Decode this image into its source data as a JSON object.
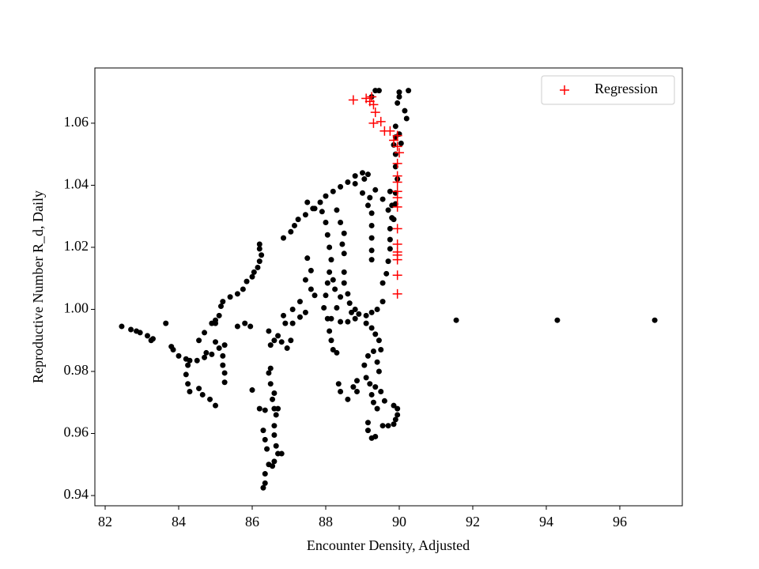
{
  "chart_data": {
    "type": "scatter",
    "xlabel": "Encounter Density, Adjusted",
    "ylabel": "Reproductive Number R_d, Daily",
    "xlim": [
      81.72,
      97.7
    ],
    "ylim": [
      0.9367,
      1.0778
    ],
    "xticks": [
      82,
      84,
      86,
      88,
      90,
      92,
      94,
      96
    ],
    "yticks": [
      0.94,
      0.96,
      0.98,
      {
        "value": 1,
        "label": "1.00"
      },
      1.02,
      1.04,
      1.06
    ],
    "legend": "upper right",
    "series": [
      {
        "color": "#000000",
        "marker": "circle",
        "x": [
          82.45,
          82.7,
          82.85,
          82.95,
          83.15,
          83.3,
          83.25,
          83.65,
          83.8,
          83.85,
          84.0,
          84.2,
          84.25,
          84.2,
          84.25,
          84.3,
          84.55,
          84.65,
          84.85,
          85.0,
          84.3,
          84.5,
          84.7,
          84.75,
          84.55,
          84.7,
          84.9,
          85.0,
          85.1,
          85.15,
          85.2,
          85.4,
          85.6,
          85.75,
          85.85,
          86.0,
          86.05,
          86.15,
          86.2,
          86.25,
          86.2,
          86.2,
          85.0,
          85.1,
          85.25,
          85.2,
          85.2,
          85.25,
          85.25,
          84.9,
          85.0,
          85.6,
          85.8,
          85.95,
          86.0,
          86.2,
          86.35,
          86.3,
          86.35,
          86.4,
          86.45,
          86.35,
          86.35,
          86.3,
          86.55,
          86.6,
          86.65,
          86.7,
          86.8,
          86.6,
          86.6,
          86.6,
          86.55,
          86.6,
          86.5,
          86.45,
          86.5,
          86.65,
          86.7,
          86.5,
          86.6,
          86.8,
          86.95,
          87.05,
          86.45,
          86.7,
          86.9,
          87.1,
          87.3,
          87.45,
          86.85,
          86.85,
          87.05,
          87.15,
          87.25,
          87.45,
          87.65,
          87.85,
          88.0,
          88.2,
          88.4,
          88.6,
          88.8,
          89.0,
          89.15,
          89.05,
          89.0,
          89.2,
          89.15,
          89.25,
          89.25,
          89.25,
          89.25,
          89.25,
          89.35,
          89.55,
          89.7,
          89.8,
          89.9,
          89.75,
          88.8,
          87.5,
          87.7,
          87.9,
          88.0,
          88.05,
          88.1,
          88.15,
          88.1,
          88.05,
          88.0,
          87.95,
          88.3,
          88.4,
          88.5,
          88.45,
          88.5,
          88.5,
          88.5,
          88.6,
          88.65,
          88.8,
          88.9,
          89.1,
          89.25,
          89.4,
          89.55,
          88.2,
          88.25,
          88.4,
          88.3,
          87.6,
          87.5,
          87.45,
          87.6,
          87.7,
          87.3,
          87.1,
          88.05,
          88.1,
          88.15,
          88.2,
          88.3,
          88.15,
          88.4,
          88.6,
          88.8,
          88.7,
          89.1,
          89.25,
          89.35,
          89.45,
          89.15,
          89.05,
          89.1,
          89.2,
          89.35,
          89.5,
          89.4,
          89.5,
          89.3,
          89.45,
          88.75,
          88.85,
          88.35,
          88.4,
          88.6,
          88.85,
          89.15,
          89.15,
          89.25,
          89.35,
          89.55,
          89.7,
          89.85,
          89.9,
          89.95,
          89.95,
          89.85,
          89.6,
          89.4,
          89.3,
          89.25,
          89.55,
          89.65,
          89.7,
          89.75,
          89.75,
          89.75,
          89.85,
          89.8,
          89.9,
          89.95,
          89.9,
          89.9,
          89.85,
          89.9,
          89.9,
          90.0,
          90.05,
          90.0,
          89.95,
          90.0,
          90.2,
          90.15,
          90.25,
          89.35,
          89.45,
          89.25,
          91.55,
          94.3,
          96.95
        ],
        "values": [
          0.9945,
          0.9935,
          0.993,
          0.9925,
          0.9915,
          0.9905,
          0.99,
          0.9955,
          0.988,
          0.987,
          0.985,
          0.984,
          0.982,
          0.979,
          0.976,
          0.9735,
          0.9745,
          0.9725,
          0.971,
          0.969,
          0.9835,
          0.9835,
          0.9845,
          0.986,
          0.99,
          0.9925,
          0.9955,
          0.9965,
          0.998,
          1.001,
          1.0025,
          1.004,
          1.005,
          1.0065,
          1.009,
          1.0105,
          1.012,
          1.0135,
          1.0155,
          1.0175,
          1.0195,
          1.021,
          0.9895,
          0.9875,
          0.9885,
          0.985,
          0.982,
          0.9795,
          0.9765,
          0.9855,
          0.9955,
          0.9945,
          0.9955,
          0.9945,
          0.974,
          0.968,
          0.9675,
          0.961,
          0.958,
          0.955,
          0.95,
          0.947,
          0.944,
          0.9425,
          0.9495,
          0.951,
          0.956,
          0.9535,
          0.9535,
          0.9595,
          0.9625,
          0.968,
          0.971,
          0.973,
          0.976,
          0.9795,
          0.981,
          0.966,
          0.968,
          0.9885,
          0.99,
          0.9895,
          0.9875,
          0.99,
          0.993,
          0.9915,
          0.9955,
          0.9955,
          0.9975,
          0.999,
          0.998,
          1.023,
          1.025,
          1.027,
          1.029,
          1.0305,
          1.0325,
          1.0345,
          1.0365,
          1.038,
          1.0395,
          1.041,
          1.043,
          1.044,
          1.0435,
          1.042,
          1.0375,
          1.036,
          1.0335,
          1.031,
          1.027,
          1.023,
          1.019,
          1.016,
          1.0385,
          1.0355,
          1.032,
          1.0295,
          1.034,
          1.038,
          1.0405,
          1.0345,
          1.0325,
          1.0315,
          1.028,
          1.024,
          1.02,
          1.016,
          1.012,
          1.0085,
          1.0045,
          1.0005,
          1.032,
          1.028,
          1.0245,
          1.021,
          1.018,
          1.012,
          1.0085,
          1.005,
          1.002,
          1.0,
          0.9985,
          0.998,
          0.999,
          1.0,
          1.0025,
          1.0095,
          1.0065,
          1.004,
          1.0005,
          1.0125,
          1.0165,
          1.0095,
          1.0065,
          1.0045,
          1.0025,
          1.0,
          0.997,
          0.993,
          0.99,
          0.987,
          0.986,
          0.997,
          0.996,
          0.996,
          0.997,
          0.999,
          0.9955,
          0.994,
          0.992,
          0.99,
          0.985,
          0.982,
          0.978,
          0.976,
          0.975,
          0.9735,
          0.983,
          0.987,
          0.9865,
          0.98,
          0.975,
          0.9735,
          0.976,
          0.9735,
          0.971,
          0.977,
          0.9635,
          0.961,
          0.9585,
          0.959,
          0.9625,
          0.9625,
          0.963,
          0.9645,
          0.966,
          0.968,
          0.969,
          0.9705,
          0.968,
          0.97,
          0.9725,
          1.0085,
          1.0115,
          1.0155,
          1.0195,
          1.0225,
          1.026,
          1.029,
          1.0335,
          1.0375,
          1.042,
          1.046,
          1.05,
          1.053,
          1.0555,
          1.059,
          1.0565,
          1.0535,
          1.0685,
          1.0665,
          1.07,
          1.0615,
          1.064,
          1.0705,
          1.0705,
          1.0705,
          1.0685,
          0.9965,
          0.9965,
          0.9965
        ]
      },
      {
        "name": "Regression",
        "color": "#ff0000",
        "marker": "plus",
        "x": [
          88.75,
          89.1,
          89.25,
          89.2,
          89.3,
          89.35,
          89.3,
          89.5,
          89.6,
          89.75,
          89.85,
          89.95,
          89.95,
          90.0,
          89.95,
          89.95,
          89.95,
          89.95,
          89.95,
          89.95,
          89.95,
          89.95,
          89.95,
          89.95,
          89.95,
          89.95,
          89.95
        ],
        "values": [
          1.0675,
          1.068,
          1.0685,
          1.067,
          1.066,
          1.0635,
          1.06,
          1.0605,
          1.0575,
          1.0575,
          1.0545,
          1.056,
          1.0525,
          1.0505,
          1.047,
          1.043,
          1.041,
          1.038,
          1.036,
          1.033,
          1.026,
          1.021,
          1.0185,
          1.0175,
          1.016,
          1.011,
          1.005
        ]
      }
    ]
  }
}
